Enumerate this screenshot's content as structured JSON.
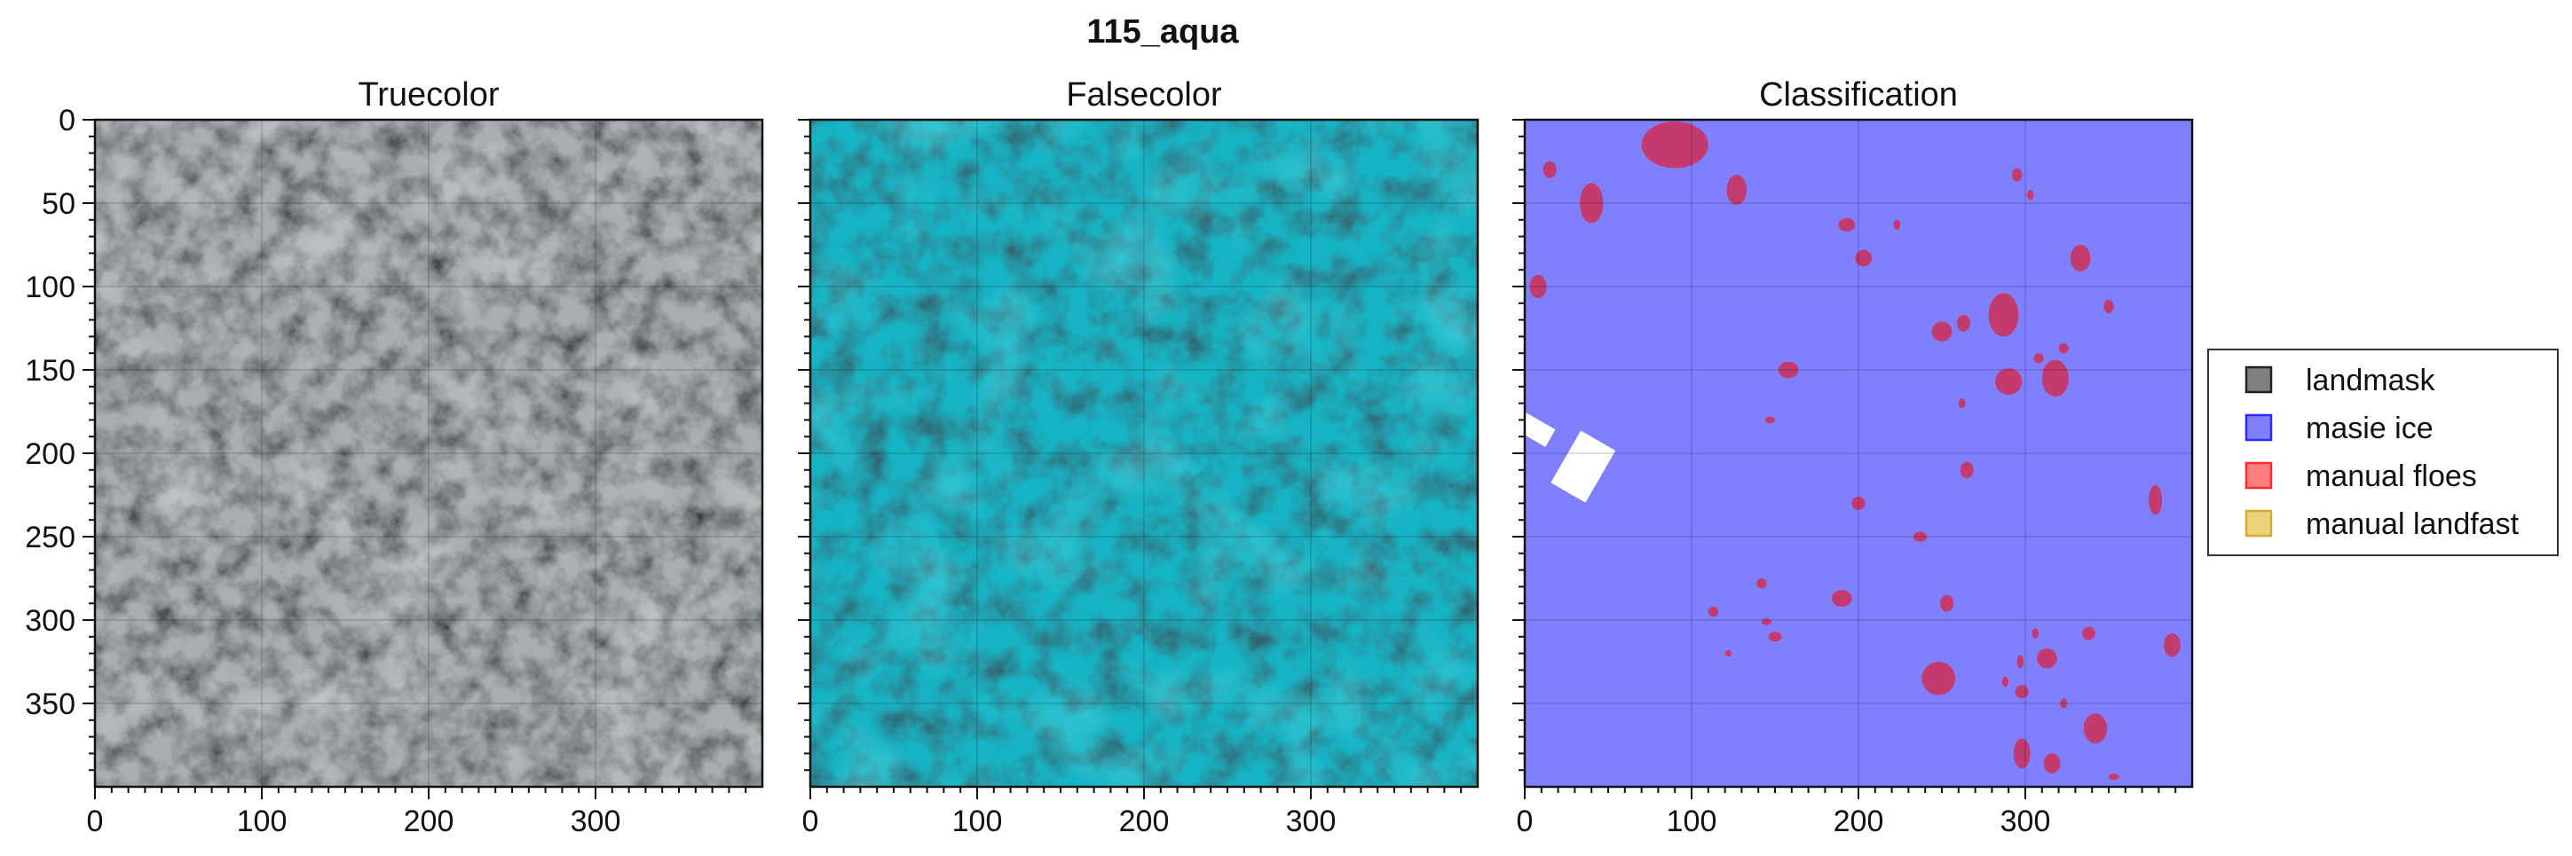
{
  "figure": {
    "suptitle": "115_aqua"
  },
  "chart_data": [
    {
      "type": "image",
      "title": "Truecolor",
      "xlim": [
        0,
        400
      ],
      "ylim": [
        400,
        0
      ],
      "xticks": [
        0,
        100,
        200,
        300
      ],
      "yticks": [
        0,
        50,
        100,
        150,
        200,
        250,
        300,
        350
      ],
      "grid": true,
      "colors": {
        "base": "#a9aeb1",
        "dark": "#2c3640",
        "light": "#e4e6e7"
      }
    },
    {
      "type": "image",
      "title": "Falsecolor",
      "xlim": [
        0,
        400
      ],
      "ylim": [
        400,
        0
      ],
      "xticks": [
        0,
        100,
        200,
        300
      ],
      "yticks": [
        0,
        50,
        100,
        150,
        200,
        250,
        300,
        350
      ],
      "grid": true,
      "colors": {
        "base": "#16b3c4",
        "dark": "#0d2a33",
        "light": "#2ed8e6"
      }
    },
    {
      "type": "image",
      "title": "Classification",
      "xlim": [
        0,
        400
      ],
      "ylim": [
        400,
        0
      ],
      "xticks": [
        0,
        100,
        200,
        300
      ],
      "yticks": [
        0,
        50,
        100,
        150,
        200,
        250,
        300,
        350
      ],
      "grid": true,
      "colors": {
        "masie_ice": "#8080ff",
        "floes": "#c23a6e",
        "landmask_gap": "#ffffff"
      },
      "floes": [
        [
          90,
          15,
          20,
          14
        ],
        [
          40,
          50,
          7,
          12
        ],
        [
          15,
          30,
          4,
          5
        ],
        [
          127,
          42,
          6,
          9
        ],
        [
          8,
          100,
          5,
          7
        ],
        [
          295,
          33,
          3,
          4
        ],
        [
          303,
          45,
          2,
          3
        ],
        [
          333,
          83,
          6,
          8
        ],
        [
          193,
          63,
          5,
          4
        ],
        [
          203,
          83,
          5,
          5
        ],
        [
          223,
          63,
          2,
          3
        ],
        [
          287,
          117,
          9,
          13
        ],
        [
          250,
          127,
          6,
          6
        ],
        [
          263,
          122,
          4,
          5
        ],
        [
          318,
          155,
          8,
          11
        ],
        [
          290,
          157,
          8,
          8
        ],
        [
          350,
          112,
          3,
          4
        ],
        [
          308,
          143,
          3,
          3
        ],
        [
          323,
          137,
          3,
          3
        ],
        [
          158,
          150,
          6,
          5
        ],
        [
          262,
          170,
          2,
          3
        ],
        [
          147,
          180,
          3,
          2
        ],
        [
          265,
          210,
          4,
          5
        ],
        [
          200,
          230,
          4,
          4
        ],
        [
          237,
          250,
          4,
          3
        ],
        [
          378,
          228,
          4,
          9
        ],
        [
          142,
          278,
          3,
          3
        ],
        [
          190,
          287,
          6,
          5
        ],
        [
          253,
          290,
          4,
          5
        ],
        [
          113,
          295,
          3,
          3
        ],
        [
          145,
          301,
          3,
          2
        ],
        [
          150,
          310,
          4,
          3
        ],
        [
          248,
          335,
          10,
          10
        ],
        [
          297,
          325,
          2,
          4
        ],
        [
          313,
          323,
          6,
          6
        ],
        [
          338,
          308,
          4,
          4
        ],
        [
          388,
          315,
          5,
          7
        ],
        [
          122,
          320,
          2,
          2
        ],
        [
          288,
          337,
          2,
          3
        ],
        [
          298,
          343,
          4,
          4
        ],
        [
          323,
          350,
          2,
          3
        ],
        [
          298,
          380,
          5,
          9
        ],
        [
          316,
          386,
          5,
          6
        ],
        [
          342,
          365,
          7,
          9
        ],
        [
          353,
          394,
          3,
          2
        ],
        [
          306,
          308,
          2,
          3
        ]
      ],
      "white_patches": [
        [
          5,
          185,
          6,
          12
        ],
        [
          35,
          208,
          18,
          12
        ]
      ]
    }
  ],
  "legend": {
    "placement": "right",
    "entries": [
      {
        "label": "landmask",
        "color": "#808080",
        "edge": "#222222"
      },
      {
        "label": "masie ice",
        "color": "#8080ff",
        "edge": "#2a2aff"
      },
      {
        "label": "manual floes",
        "color": "#ff7f7f",
        "edge": "#ff2a2a"
      },
      {
        "label": "manual landfast",
        "color": "#ecd27c",
        "edge": "#d4ab2c"
      }
    ]
  }
}
